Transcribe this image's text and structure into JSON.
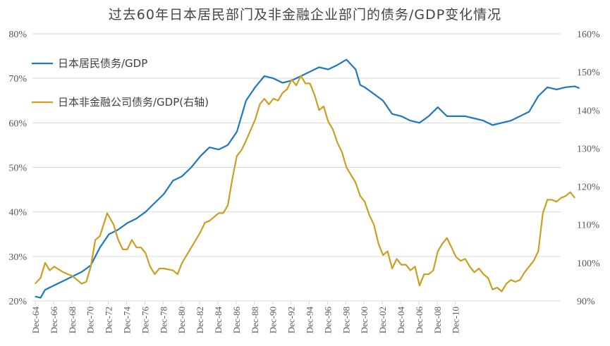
{
  "chart_data": {
    "type": "line",
    "title": "过去60年日本居民部门及非金融企业部门的债务/GDP变化情况",
    "xlabel": "",
    "ylabel_left": "",
    "ylabel_right": "",
    "x_tick_labels": [
      "Dec-64",
      "Dec-66",
      "Dec-68",
      "Dec-70",
      "Dec-72",
      "Dec-74",
      "Dec-76",
      "Dec-78",
      "Dec-80",
      "Dec-82",
      "Dec-84",
      "Dec-86",
      "Dec-88",
      "Dec-90",
      "Dec-92",
      "Dec-94",
      "Dec-96",
      "Dec-98",
      "Dec-00",
      "Dec-02",
      "Dec-04",
      "Dec-06",
      "Dec-08",
      "Dec-10"
    ],
    "x_range": [
      1964.92,
      2024.6
    ],
    "y_left": {
      "ticks": [
        "20%",
        "30%",
        "40%",
        "50%",
        "60%",
        "70%",
        "80%"
      ],
      "range": [
        20,
        80
      ]
    },
    "y_right": {
      "ticks": [
        "90%",
        "100%",
        "110%",
        "120%",
        "130%",
        "140%",
        "150%",
        "160%"
      ],
      "range": [
        90,
        160
      ]
    },
    "grid": true,
    "legend_position": "top-left",
    "series": [
      {
        "name": "日本居民债务/GDP",
        "axis": "left",
        "color": "#1f77c0",
        "points": [
          [
            1964.9,
            21
          ],
          [
            1965.5,
            20.7
          ],
          [
            1966,
            22.5
          ],
          [
            1967,
            23.5
          ],
          [
            1968,
            24.5
          ],
          [
            1969,
            25.5
          ],
          [
            1970,
            26.5
          ],
          [
            1971,
            28
          ],
          [
            1972,
            32
          ],
          [
            1973,
            35
          ],
          [
            1974,
            36
          ],
          [
            1975,
            37.5
          ],
          [
            1976,
            38.5
          ],
          [
            1977,
            40
          ],
          [
            1978,
            42
          ],
          [
            1979,
            44
          ],
          [
            1980,
            47
          ],
          [
            1981,
            48
          ],
          [
            1982,
            50
          ],
          [
            1983,
            52.5
          ],
          [
            1984,
            54.5
          ],
          [
            1985,
            54
          ],
          [
            1986,
            55
          ],
          [
            1987,
            58
          ],
          [
            1988,
            65
          ],
          [
            1989,
            68
          ],
          [
            1990,
            70.5
          ],
          [
            1991,
            70
          ],
          [
            1992,
            69
          ],
          [
            1993,
            69.5
          ],
          [
            1994,
            70.5
          ],
          [
            1995,
            71.5
          ],
          [
            1996,
            72.5
          ],
          [
            1997,
            72
          ],
          [
            1998,
            73
          ],
          [
            1999,
            74.2
          ],
          [
            2000,
            72
          ],
          [
            2000.5,
            68.5
          ],
          [
            2001,
            68
          ],
          [
            2002,
            66.5
          ],
          [
            2003,
            65
          ],
          [
            2004,
            62
          ],
          [
            2005,
            61.5
          ],
          [
            2006,
            60.5
          ],
          [
            2007,
            60
          ],
          [
            2008,
            61.5
          ],
          [
            2009,
            63.5
          ],
          [
            2010,
            61.5
          ],
          [
            2011,
            61.5
          ],
          [
            2012,
            61.5
          ],
          [
            2013,
            61
          ],
          [
            2014,
            60.5
          ],
          [
            2015,
            59.5
          ],
          [
            2016,
            60
          ],
          [
            2017,
            60.5
          ],
          [
            2018,
            61.5
          ],
          [
            2019,
            62.5
          ],
          [
            2020,
            66
          ],
          [
            2021,
            68
          ],
          [
            2022,
            67.5
          ],
          [
            2023,
            68
          ],
          [
            2024,
            68.2
          ],
          [
            2024.5,
            67.8
          ]
        ]
      },
      {
        "name": "日本非金融公司债务/GDP(右轴)",
        "axis": "right",
        "color": "#c9a021",
        "points": [
          [
            1964.9,
            94.5
          ],
          [
            1965.5,
            96
          ],
          [
            1966,
            100
          ],
          [
            1966.5,
            98
          ],
          [
            1967,
            99
          ],
          [
            1968,
            97.5
          ],
          [
            1969,
            96.5
          ],
          [
            1970,
            94.5
          ],
          [
            1970.5,
            95
          ],
          [
            1971,
            99
          ],
          [
            1971.5,
            106
          ],
          [
            1972,
            107
          ],
          [
            1972.8,
            113
          ],
          [
            1973.5,
            110
          ],
          [
            1974,
            106
          ],
          [
            1974.5,
            103.5
          ],
          [
            1975,
            103.5
          ],
          [
            1975.5,
            106
          ],
          [
            1976,
            104
          ],
          [
            1976.5,
            104
          ],
          [
            1977,
            102.5
          ],
          [
            1977.5,
            99
          ],
          [
            1978,
            97
          ],
          [
            1978.5,
            98.5
          ],
          [
            1979,
            98.5
          ],
          [
            1980,
            98
          ],
          [
            1980.5,
            97
          ],
          [
            1981,
            100
          ],
          [
            1982,
            104
          ],
          [
            1982.5,
            106
          ],
          [
            1983,
            108
          ],
          [
            1983.5,
            110.5
          ],
          [
            1984,
            111
          ],
          [
            1985,
            113
          ],
          [
            1985.5,
            113
          ],
          [
            1986,
            115
          ],
          [
            1986.5,
            122
          ],
          [
            1987,
            128
          ],
          [
            1987.5,
            129.5
          ],
          [
            1988,
            132
          ],
          [
            1989,
            137.5
          ],
          [
            1989.5,
            141.5
          ],
          [
            1990,
            143
          ],
          [
            1990.5,
            141.5
          ],
          [
            1991,
            143
          ],
          [
            1991.5,
            142.5
          ],
          [
            1992,
            144.5
          ],
          [
            1992.5,
            145.5
          ],
          [
            1993,
            148
          ],
          [
            1993.5,
            146.5
          ],
          [
            1994,
            149
          ],
          [
            1994.5,
            147
          ],
          [
            1995,
            147
          ],
          [
            1995.5,
            144
          ],
          [
            1996,
            140
          ],
          [
            1996.5,
            141
          ],
          [
            1997,
            137
          ],
          [
            1997.5,
            135
          ],
          [
            1998,
            131.5
          ],
          [
            1998.5,
            129
          ],
          [
            1999,
            125
          ],
          [
            1999.5,
            123
          ],
          [
            2000,
            121
          ],
          [
            2000.5,
            117.5
          ],
          [
            2001,
            116
          ],
          [
            2001.5,
            112.5
          ],
          [
            2002,
            110
          ],
          [
            2002.5,
            105
          ],
          [
            2003,
            102
          ],
          [
            2003.5,
            103
          ],
          [
            2004,
            98.5
          ],
          [
            2004.5,
            101
          ],
          [
            2005,
            99.5
          ],
          [
            2005.5,
            99.5
          ],
          [
            2006,
            98
          ],
          [
            2006.5,
            99
          ],
          [
            2007,
            94
          ],
          [
            2007.5,
            97
          ],
          [
            2008,
            97
          ],
          [
            2008.5,
            98
          ],
          [
            2009,
            103
          ],
          [
            2009.5,
            105
          ],
          [
            2010,
            106.5
          ],
          [
            2010.5,
            104
          ],
          [
            2011,
            101.5
          ],
          [
            2011.5,
            100.5
          ],
          [
            2012,
            101
          ],
          [
            2012.5,
            99
          ],
          [
            2013,
            97.5
          ],
          [
            2013.5,
            98.5
          ],
          [
            2014,
            97
          ],
          [
            2014.5,
            96
          ],
          [
            2015,
            93
          ],
          [
            2015.5,
            93.5
          ],
          [
            2016,
            92.5
          ],
          [
            2016.5,
            94.5
          ],
          [
            2017,
            95.5
          ],
          [
            2017.5,
            95
          ],
          [
            2018,
            95.5
          ],
          [
            2018.5,
            97.5
          ],
          [
            2019,
            99
          ],
          [
            2019.5,
            100.5
          ],
          [
            2020,
            103
          ],
          [
            2020.5,
            113
          ],
          [
            2021,
            116.5
          ],
          [
            2021.5,
            116.5
          ],
          [
            2022,
            116
          ],
          [
            2022.5,
            117
          ],
          [
            2023,
            117.5
          ],
          [
            2023.5,
            118.5
          ],
          [
            2024,
            117
          ]
        ]
      }
    ]
  }
}
